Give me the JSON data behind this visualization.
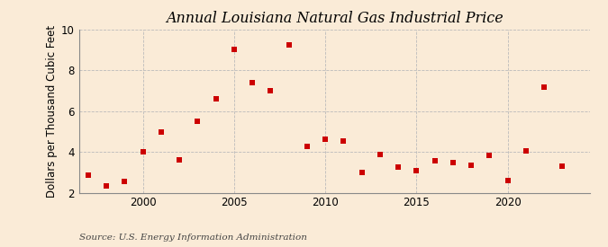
{
  "title": "Annual Louisiana Natural Gas Industrial Price",
  "ylabel": "Dollars per Thousand Cubic Feet",
  "source": "Source: U.S. Energy Information Administration",
  "years": [
    1997,
    1998,
    1999,
    2000,
    2001,
    2002,
    2003,
    2004,
    2005,
    2006,
    2007,
    2008,
    2009,
    2010,
    2011,
    2012,
    2013,
    2014,
    2015,
    2016,
    2017,
    2018,
    2019,
    2020,
    2021,
    2022,
    2023
  ],
  "values": [
    2.87,
    2.32,
    2.55,
    4.0,
    4.97,
    3.62,
    5.52,
    6.6,
    9.04,
    7.4,
    7.0,
    9.27,
    4.26,
    4.62,
    4.55,
    2.97,
    3.87,
    3.27,
    3.1,
    3.55,
    3.48,
    3.33,
    3.85,
    2.58,
    4.06,
    7.17,
    3.3
  ],
  "marker_color": "#cc0000",
  "marker_size": 16,
  "background_color": "#faebd7",
  "grid_color": "#bbbbbb",
  "ylim": [
    2,
    10
  ],
  "yticks": [
    2,
    4,
    6,
    8,
    10
  ],
  "xlim": [
    1996.5,
    2024.5
  ],
  "xticks": [
    2000,
    2005,
    2010,
    2015,
    2020
  ],
  "title_fontsize": 11.5,
  "label_fontsize": 8.5,
  "tick_fontsize": 8.5,
  "source_fontsize": 7.5
}
